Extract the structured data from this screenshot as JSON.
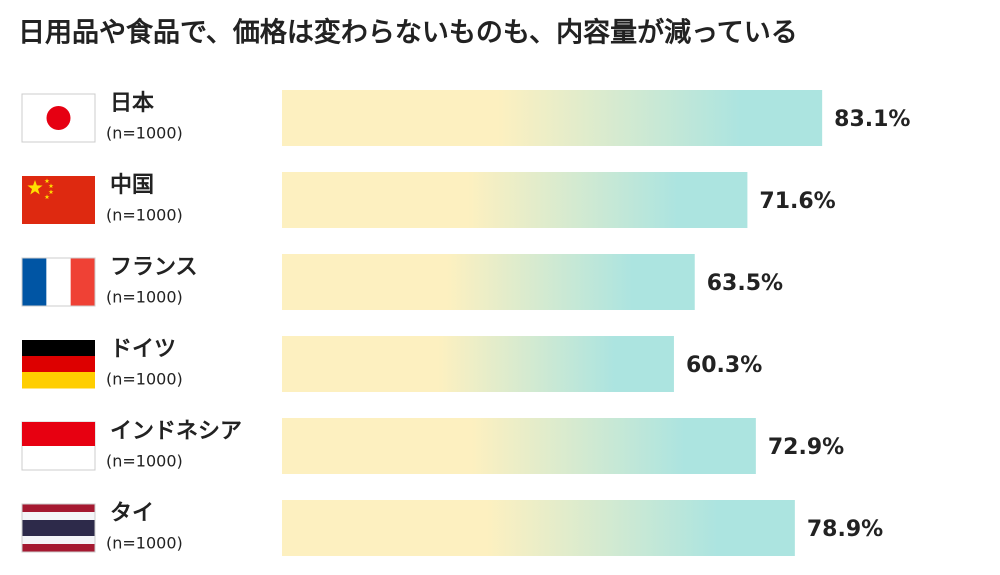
{
  "chart_data": {
    "type": "hbar",
    "title": "日用品や食品で、価格は変わらないものも、内容量が減っている",
    "categories": [
      "日本",
      "中国",
      "フランス",
      "ドイツ",
      "インドネシア",
      "タイ"
    ],
    "sample_labels": [
      "(n=1000)",
      "(n=1000)",
      "(n=1000)",
      "(n=1000)",
      "(n=1000)",
      "(n=1000)"
    ],
    "values": [
      83.1,
      71.6,
      63.5,
      60.3,
      72.9,
      78.9
    ],
    "value_labels": [
      "83.1%",
      "71.6%",
      "63.5%",
      "60.3%",
      "72.9%",
      "78.9%"
    ],
    "color": [
      "#fdf0c0",
      "#ace4e0"
    ]
  }
}
